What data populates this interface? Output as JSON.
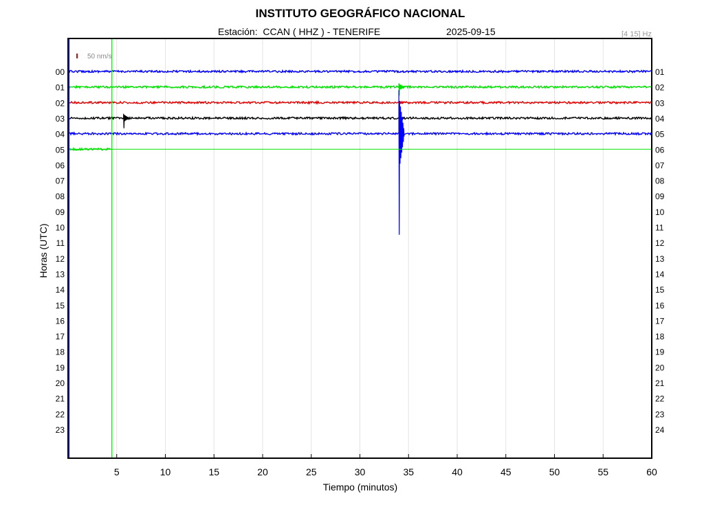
{
  "header": {
    "title": "INSTITUTO GEOGRÁFICO NACIONAL",
    "station_line": "Estación:  CCAN ( HHZ ) - TENERIFE",
    "date": "2025-09-15",
    "filter": "[4 15] Hz"
  },
  "scale_label": "50 nm/s",
  "colors": {
    "blue": "#0000ff",
    "green": "#00e000",
    "red": "#e00000",
    "black": "#000000",
    "grid": "#e3e3e3",
    "filter_text": "#999999"
  },
  "chart_data": {
    "type": "line",
    "title": "INSTITUTO GEOGRÁFICO NACIONAL",
    "xlabel": "Tiempo (minutos)",
    "ylabel": "Horas (UTC)",
    "xlim": [
      0,
      60
    ],
    "x_ticks": [
      "5",
      "10",
      "15",
      "20",
      "25",
      "30",
      "35",
      "40",
      "45",
      "50",
      "55",
      "60"
    ],
    "x_tick_values": [
      5,
      10,
      15,
      20,
      25,
      30,
      35,
      40,
      45,
      50,
      55,
      60
    ],
    "left_ticks": [
      "00",
      "01",
      "02",
      "03",
      "04",
      "05",
      "06",
      "07",
      "08",
      "09",
      "10",
      "11",
      "12",
      "13",
      "14",
      "15",
      "16",
      "17",
      "18",
      "19",
      "20",
      "21",
      "22",
      "23"
    ],
    "right_ticks": [
      "01",
      "02",
      "03",
      "04",
      "05",
      "06",
      "07",
      "08",
      "09",
      "10",
      "11",
      "12",
      "13",
      "14",
      "15",
      "16",
      "17",
      "18",
      "19",
      "20",
      "21",
      "22",
      "23",
      "24"
    ],
    "grid": true,
    "current_time_marker_minute": 4.5,
    "traces": [
      {
        "hour": 0,
        "color": "blue",
        "start_min": 0,
        "end_min": 60,
        "events": []
      },
      {
        "hour": 1,
        "color": "green",
        "start_min": 0,
        "end_min": 60,
        "events": [
          {
            "minute": 34.0,
            "amplitude_rows": 0.6
          }
        ]
      },
      {
        "hour": 2,
        "color": "red",
        "start_min": 0,
        "end_min": 60,
        "events": [
          {
            "minute": 34.0,
            "amplitude_rows": 0.3
          }
        ]
      },
      {
        "hour": 3,
        "color": "black",
        "start_min": 0,
        "end_min": 60,
        "events": [
          {
            "minute": 5.7,
            "amplitude_rows": 0.7
          },
          {
            "minute": 34.0,
            "amplitude_rows": 0.4
          }
        ]
      },
      {
        "hour": 4,
        "color": "blue",
        "start_min": 0,
        "end_min": 60,
        "events": [
          {
            "minute": 34.0,
            "amplitude_rows": 7.0
          }
        ]
      },
      {
        "hour": 5,
        "color": "green",
        "start_min": 0,
        "end_min": 4.5,
        "events": []
      }
    ]
  }
}
